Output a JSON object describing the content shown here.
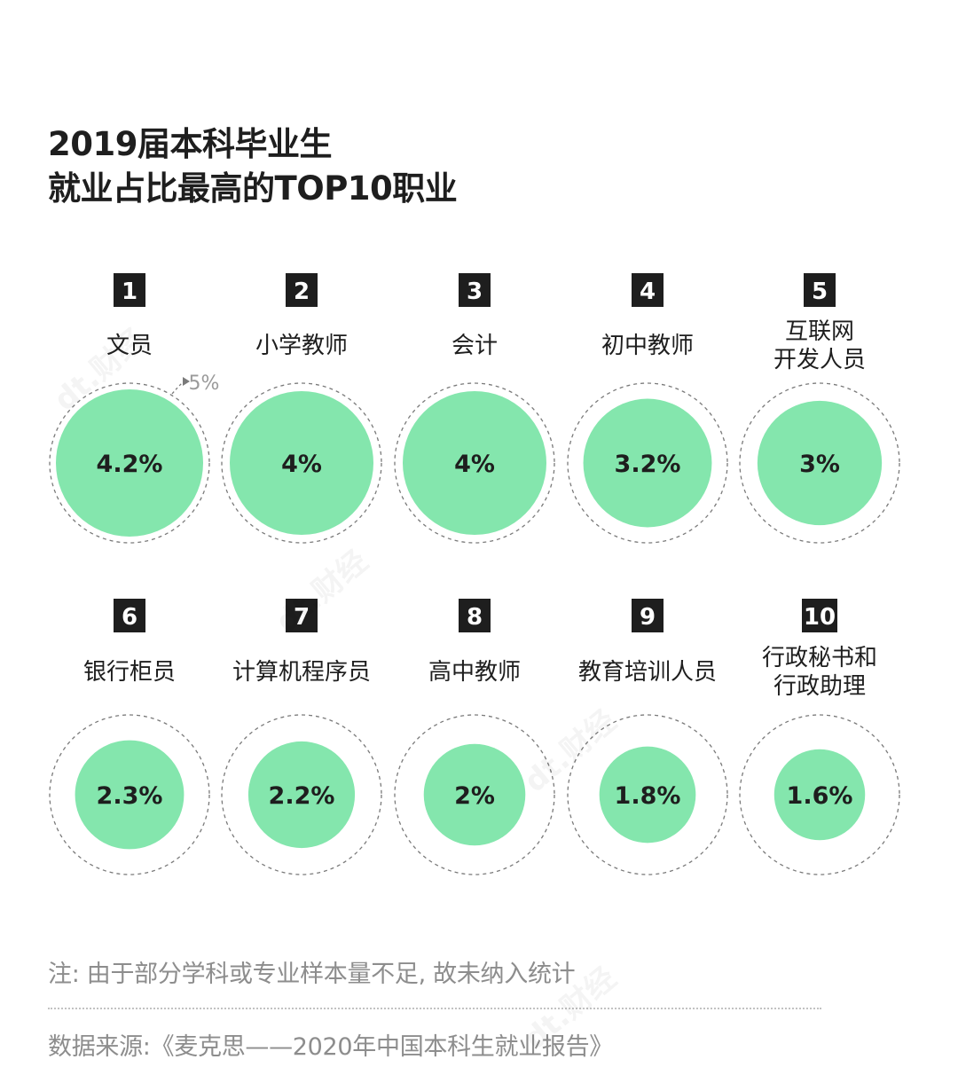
{
  "title": {
    "line1": "2019届本科毕业生",
    "line2": "就业占比最高的TOP10职业"
  },
  "reference_label": "5%",
  "chart_data": {
    "type": "bubble",
    "title": "2019届本科毕业生就业占比最高的TOP10职业",
    "reference_value": 5,
    "unit": "%",
    "items": [
      {
        "rank": "1",
        "label": [
          "文员"
        ],
        "value": 4.2,
        "value_label": "4.2%"
      },
      {
        "rank": "2",
        "label": [
          "小学教师"
        ],
        "value": 4.0,
        "value_label": "4%"
      },
      {
        "rank": "3",
        "label": [
          "会计"
        ],
        "value": 4.0,
        "value_label": "4%"
      },
      {
        "rank": "4",
        "label": [
          "初中教师"
        ],
        "value": 3.2,
        "value_label": "3.2%"
      },
      {
        "rank": "5",
        "label": [
          "互联网",
          "开发人员"
        ],
        "value": 3.0,
        "value_label": "3%"
      },
      {
        "rank": "6",
        "label": [
          "银行柜员"
        ],
        "value": 2.3,
        "value_label": "2.3%"
      },
      {
        "rank": "7",
        "label": [
          "计算机程序员"
        ],
        "value": 2.2,
        "value_label": "2.2%"
      },
      {
        "rank": "8",
        "label": [
          "高中教师"
        ],
        "value": 2.0,
        "value_label": "2%"
      },
      {
        "rank": "9",
        "label": [
          "教育培训人员"
        ],
        "value": 1.8,
        "value_label": "1.8%"
      },
      {
        "rank": "10",
        "label": [
          "行政秘书和",
          "行政助理"
        ],
        "value": 1.6,
        "value_label": "1.6%"
      }
    ]
  },
  "colors": {
    "bubble": "#84e6ad",
    "rank_bg": "#1e1e1e",
    "rank_text": "#ffffff",
    "dashed": "#7a7a7a",
    "text": "#1e1e1e",
    "muted": "#9a9a9a"
  },
  "note": "注: 由于部分学科或专业样本量不足, 故未纳入统计",
  "source": "数据来源:《麦克思——2020年中国本科生就业报告》",
  "watermark": "dt.财经"
}
